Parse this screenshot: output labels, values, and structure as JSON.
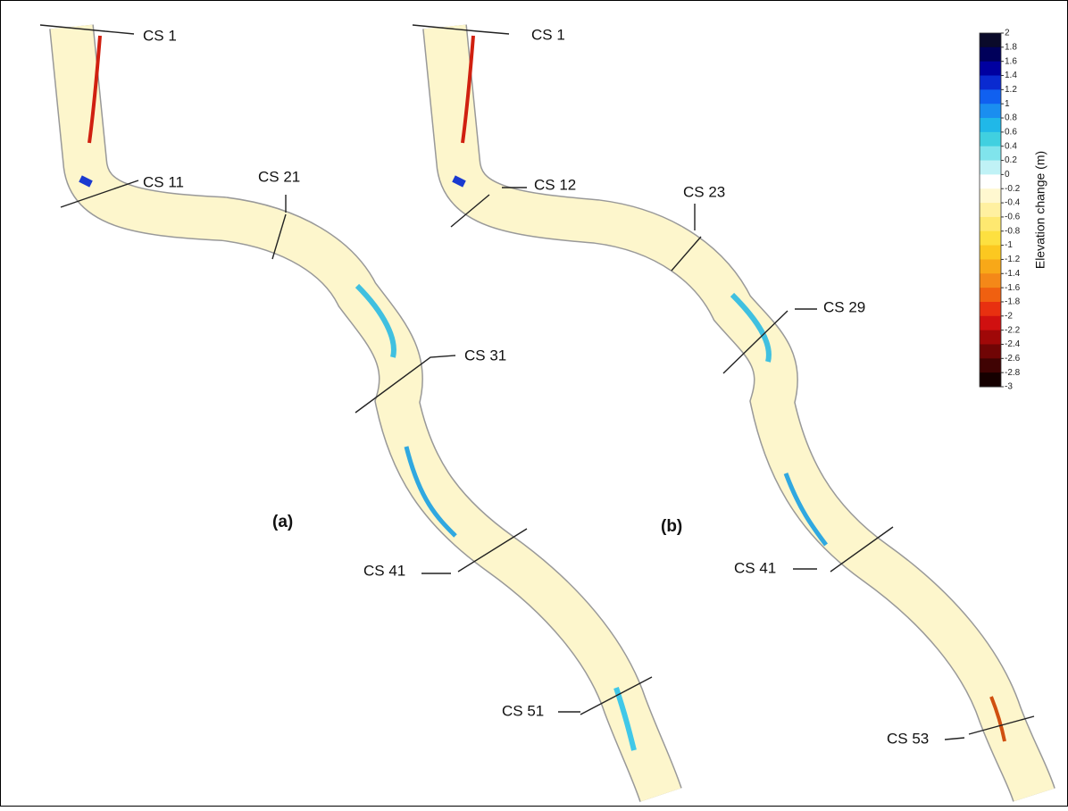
{
  "panels": [
    {
      "label": "(a)",
      "cross_sections": [
        "CS 1",
        "CS 11",
        "CS 21",
        "CS 31",
        "CS 41",
        "CS 51"
      ]
    },
    {
      "label": "(b)",
      "cross_sections": [
        "CS 1",
        "CS 12",
        "CS 23",
        "CS 29",
        "CS 41",
        "CS 53"
      ]
    }
  ],
  "colorbar": {
    "title": "Elevation change (m)",
    "ticks": [
      2,
      1.8,
      1.6,
      1.4,
      1.2,
      1,
      0.8,
      0.6,
      0.4,
      0.2,
      0,
      -0.2,
      -0.4,
      -0.6,
      -0.8,
      -1,
      -1.2,
      -1.4,
      -1.6,
      -1.8,
      -2,
      -2.2,
      -2.4,
      -2.6,
      -2.8,
      -3
    ],
    "colors": [
      "#0a0a2a",
      "#00005a",
      "#0000a0",
      "#0a2ad0",
      "#1060f0",
      "#1a8ef0",
      "#20b8e8",
      "#40d0e0",
      "#80e4ec",
      "#c0f2f6",
      "#ffffff",
      "#fff8d0",
      "#fff0a0",
      "#fee870",
      "#fde040",
      "#fcc820",
      "#f8a818",
      "#f48818",
      "#f06010",
      "#e83010",
      "#d01010",
      "#a00808",
      "#700505",
      "#400303",
      "#150000"
    ]
  }
}
